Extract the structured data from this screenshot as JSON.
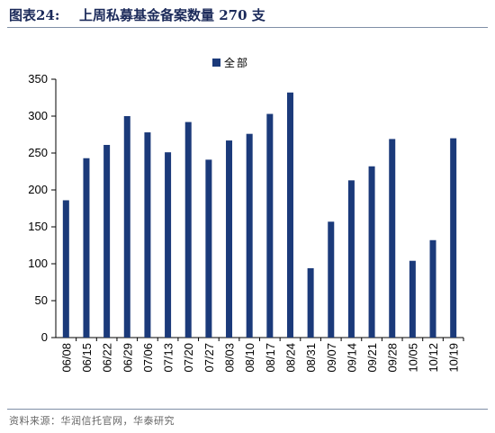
{
  "header": {
    "figure_label": "图表24:",
    "title": "上周私募基金备案数量 270 支"
  },
  "footer": {
    "source": "资料来源：华润信托官网，华泰研究"
  },
  "colors": {
    "bar": "#1b3a7a",
    "rule": "#7f8fa6",
    "title": "#1b2a5a"
  },
  "chart_data": {
    "type": "bar",
    "title": "",
    "xlabel": "",
    "ylabel": "",
    "ylim": [
      0,
      350
    ],
    "yticks": [
      0,
      50,
      100,
      150,
      200,
      250,
      300,
      350
    ],
    "legend_position": "top-center",
    "grid": false,
    "categories": [
      "06/08",
      "06/15",
      "06/22",
      "06/29",
      "07/06",
      "07/13",
      "07/20",
      "07/27",
      "08/03",
      "08/10",
      "08/17",
      "08/24",
      "08/31",
      "09/07",
      "09/14",
      "09/21",
      "09/28",
      "10/05",
      "10/12",
      "10/19"
    ],
    "series": [
      {
        "name": "全部",
        "values": [
          186,
          243,
          261,
          300,
          278,
          251,
          292,
          241,
          267,
          276,
          303,
          332,
          94,
          157,
          213,
          232,
          269,
          104,
          132,
          270
        ]
      }
    ]
  }
}
